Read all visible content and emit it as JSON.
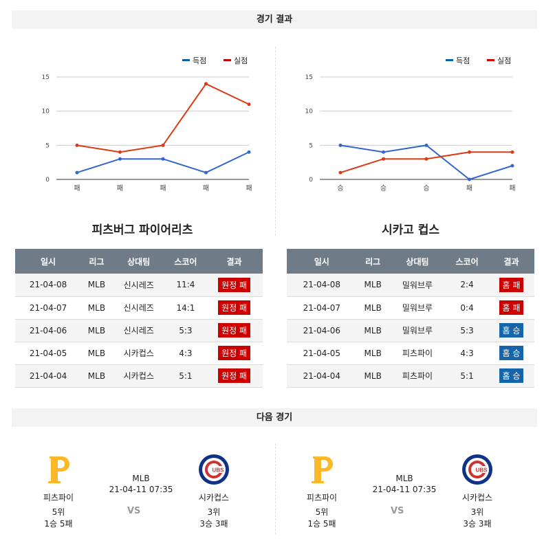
{
  "header": {
    "results_title": "경기 결과",
    "next_title": "다음 경기"
  },
  "legend": {
    "scored": "득점",
    "allowed": "실점"
  },
  "colors": {
    "scored": "#3366cc",
    "allowed": "#dc3912",
    "legend_scored": "#0b5ea8",
    "legend_allowed": "#cc0000",
    "loss": "#cc0000",
    "win": "#1565a8"
  },
  "chart_data": [
    {
      "type": "line",
      "categories": [
        "패",
        "패",
        "패",
        "패",
        "패"
      ],
      "series": [
        {
          "name": "득점",
          "values": [
            1,
            3,
            3,
            1,
            4
          ]
        },
        {
          "name": "실점",
          "values": [
            5,
            4,
            5,
            14,
            11
          ]
        }
      ],
      "yticks": [
        "0",
        "5",
        "10",
        "15"
      ],
      "ylim": [
        0,
        15
      ],
      "legend": "top-right",
      "grid": true
    },
    {
      "type": "line",
      "categories": [
        "승",
        "승",
        "승",
        "패",
        "패"
      ],
      "series": [
        {
          "name": "득점",
          "values": [
            5,
            4,
            5,
            0,
            2
          ]
        },
        {
          "name": "실점",
          "values": [
            1,
            3,
            3,
            4,
            4
          ]
        }
      ],
      "yticks": [
        "0",
        "5",
        "10",
        "15"
      ],
      "ylim": [
        0,
        15
      ],
      "legend": "top-right",
      "grid": true
    }
  ],
  "teams": [
    {
      "name": "피츠버그 파이어리츠",
      "columns": [
        "일시",
        "리그",
        "상대팀",
        "스코어",
        "결과"
      ],
      "rows": [
        {
          "date": "21-04-08",
          "league": "MLB",
          "opp": "신시레즈",
          "score": "11:4",
          "result": "원정 패",
          "win": false
        },
        {
          "date": "21-04-07",
          "league": "MLB",
          "opp": "신시레즈",
          "score": "14:1",
          "result": "원정 패",
          "win": false
        },
        {
          "date": "21-04-06",
          "league": "MLB",
          "opp": "신시레즈",
          "score": "5:3",
          "result": "원정 패",
          "win": false
        },
        {
          "date": "21-04-05",
          "league": "MLB",
          "opp": "시카컵스",
          "score": "4:3",
          "result": "원정 패",
          "win": false
        },
        {
          "date": "21-04-04",
          "league": "MLB",
          "opp": "시카컵스",
          "score": "5:1",
          "result": "원정 패",
          "win": false
        }
      ]
    },
    {
      "name": "시카고 컵스",
      "columns": [
        "일시",
        "리그",
        "상대팀",
        "스코어",
        "결과"
      ],
      "rows": [
        {
          "date": "21-04-08",
          "league": "MLB",
          "opp": "밀워브루",
          "score": "2:4",
          "result": "홈 패",
          "win": false
        },
        {
          "date": "21-04-07",
          "league": "MLB",
          "opp": "밀워브루",
          "score": "0:4",
          "result": "홈 패",
          "win": false
        },
        {
          "date": "21-04-06",
          "league": "MLB",
          "opp": "밀워브루",
          "score": "5:3",
          "result": "홈 승",
          "win": true
        },
        {
          "date": "21-04-05",
          "league": "MLB",
          "opp": "피츠파이",
          "score": "4:3",
          "result": "홈 승",
          "win": true
        },
        {
          "date": "21-04-04",
          "league": "MLB",
          "opp": "피츠파이",
          "score": "5:1",
          "result": "홈 승",
          "win": true
        }
      ]
    }
  ],
  "next_games": [
    {
      "league": "MLB",
      "datetime": "21-04-11 07:35",
      "vs": "VS",
      "home": {
        "name": "피츠파이",
        "rank": "5위",
        "record": "1승 5패",
        "logo": "P"
      },
      "away": {
        "name": "시카컵스",
        "rank": "3위",
        "record": "3승 3패",
        "logo": "CUBS"
      }
    },
    {
      "league": "MLB",
      "datetime": "21-04-11 07:35",
      "vs": "VS",
      "home": {
        "name": "피츠파이",
        "rank": "5위",
        "record": "1승 5패",
        "logo": "P"
      },
      "away": {
        "name": "시카컵스",
        "rank": "3위",
        "record": "3승 3패",
        "logo": "CUBS"
      }
    }
  ]
}
